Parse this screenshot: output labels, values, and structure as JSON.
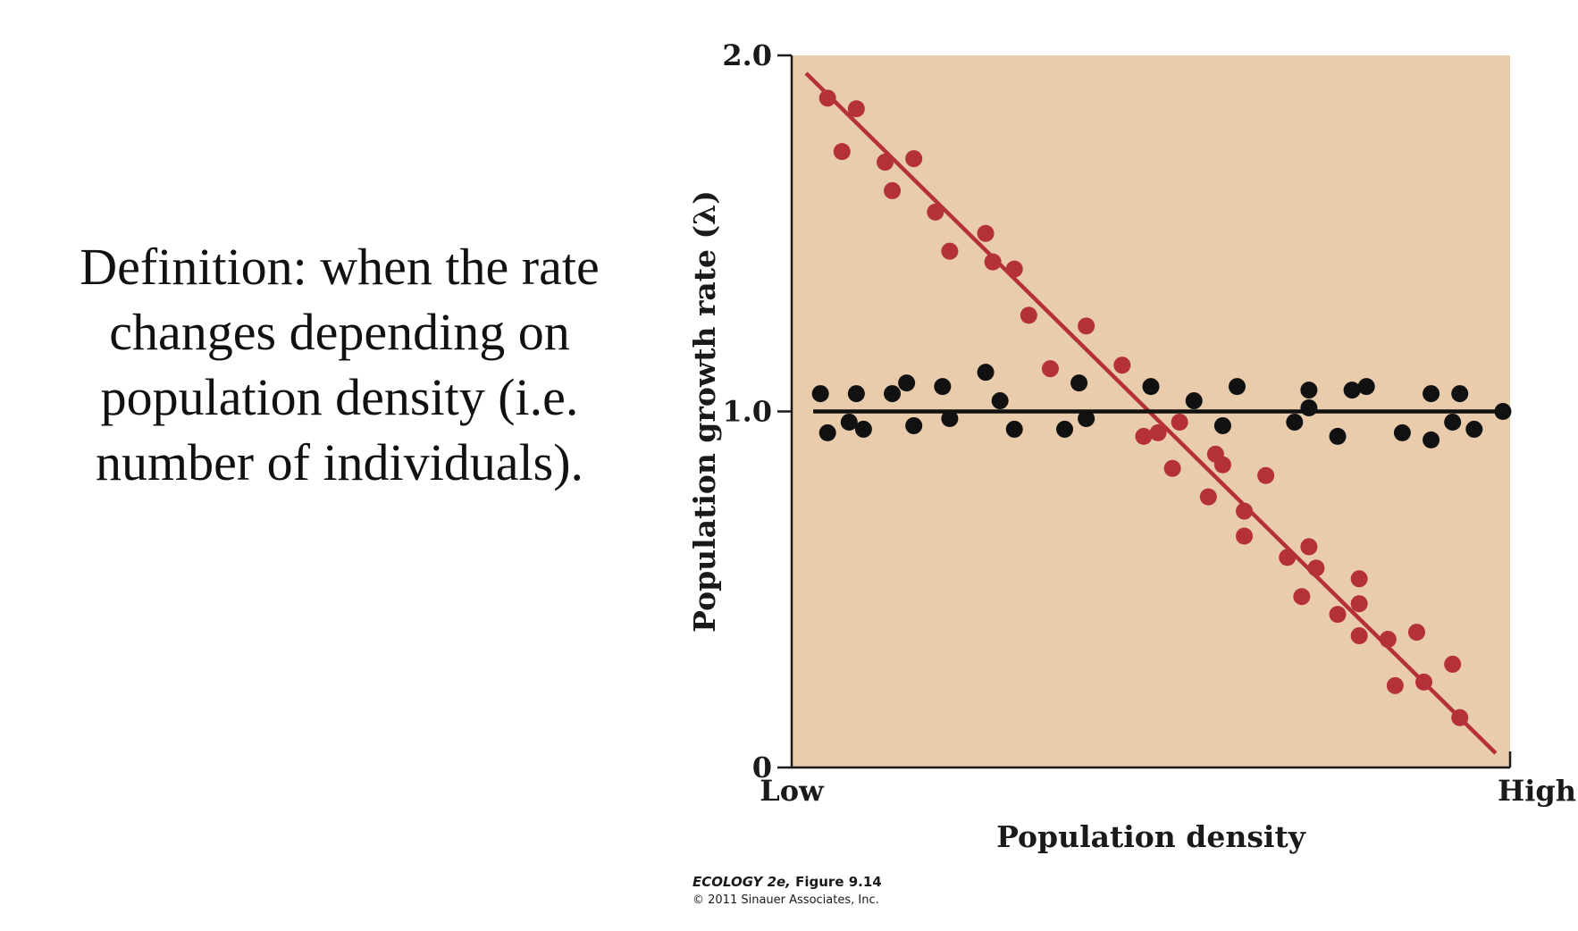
{
  "slide": {
    "definition_text": "Definition: when the rate changes depending on population density (i.e. number of individuals)."
  },
  "credit": {
    "title_italic": "ECOLOGY 2e,",
    "title_rest": " Figure 9.14",
    "copyright": "© 2011 Sinauer Associates, Inc."
  },
  "chart_data": {
    "type": "scatter",
    "xlabel": "Population density",
    "ylabel": "Population growth rate (λ)",
    "x_tick_labels": [
      "Low",
      "High"
    ],
    "y_ticks": [
      0,
      1.0,
      2.0
    ],
    "y_tick_labels": [
      "0",
      "1.0",
      "2.0"
    ],
    "xlim": [
      0,
      1
    ],
    "ylim": [
      0,
      2.0
    ],
    "background_color": "#e8ccab",
    "grid": false,
    "series": [
      {
        "color": "#b5313a",
        "trend_line": [
          [
            0.02,
            1.95
          ],
          [
            0.98,
            0.04
          ]
        ],
        "points": [
          [
            0.05,
            1.88
          ],
          [
            0.07,
            1.73
          ],
          [
            0.09,
            1.85
          ],
          [
            0.13,
            1.7
          ],
          [
            0.14,
            1.62
          ],
          [
            0.17,
            1.71
          ],
          [
            0.2,
            1.56
          ],
          [
            0.22,
            1.45
          ],
          [
            0.27,
            1.5
          ],
          [
            0.28,
            1.42
          ],
          [
            0.31,
            1.4
          ],
          [
            0.33,
            1.27
          ],
          [
            0.36,
            1.12
          ],
          [
            0.41,
            1.24
          ],
          [
            0.46,
            1.13
          ],
          [
            0.49,
            0.93
          ],
          [
            0.51,
            0.94
          ],
          [
            0.53,
            0.84
          ],
          [
            0.54,
            0.97
          ],
          [
            0.58,
            0.76
          ],
          [
            0.59,
            0.88
          ],
          [
            0.6,
            0.85
          ],
          [
            0.63,
            0.72
          ],
          [
            0.63,
            0.65
          ],
          [
            0.66,
            0.82
          ],
          [
            0.69,
            0.59
          ],
          [
            0.71,
            0.48
          ],
          [
            0.72,
            0.62
          ],
          [
            0.73,
            0.56
          ],
          [
            0.76,
            0.43
          ],
          [
            0.79,
            0.53
          ],
          [
            0.79,
            0.46
          ],
          [
            0.79,
            0.37
          ],
          [
            0.83,
            0.36
          ],
          [
            0.84,
            0.23
          ],
          [
            0.87,
            0.38
          ],
          [
            0.88,
            0.24
          ],
          [
            0.92,
            0.29
          ],
          [
            0.93,
            0.14
          ]
        ]
      },
      {
        "color": "#111111",
        "trend_line": [
          [
            0.03,
            1.0
          ],
          [
            0.99,
            1.0
          ]
        ],
        "points": [
          [
            0.04,
            1.05
          ],
          [
            0.05,
            0.94
          ],
          [
            0.08,
            0.97
          ],
          [
            0.09,
            1.05
          ],
          [
            0.1,
            0.95
          ],
          [
            0.14,
            1.05
          ],
          [
            0.16,
            1.08
          ],
          [
            0.17,
            0.96
          ],
          [
            0.21,
            1.07
          ],
          [
            0.22,
            0.98
          ],
          [
            0.27,
            1.11
          ],
          [
            0.29,
            1.03
          ],
          [
            0.31,
            0.95
          ],
          [
            0.38,
            0.95
          ],
          [
            0.4,
            1.08
          ],
          [
            0.41,
            0.98
          ],
          [
            0.5,
            1.07
          ],
          [
            0.56,
            1.03
          ],
          [
            0.6,
            0.96
          ],
          [
            0.62,
            1.07
          ],
          [
            0.7,
            0.97
          ],
          [
            0.72,
            1.06
          ],
          [
            0.72,
            1.01
          ],
          [
            0.76,
            0.93
          ],
          [
            0.78,
            1.06
          ],
          [
            0.8,
            1.07
          ],
          [
            0.85,
            0.94
          ],
          [
            0.89,
            1.05
          ],
          [
            0.89,
            0.92
          ],
          [
            0.92,
            0.97
          ],
          [
            0.93,
            1.05
          ],
          [
            0.95,
            0.95
          ],
          [
            0.99,
            1.0
          ]
        ]
      }
    ]
  },
  "colors": {
    "plot_background": "#e8ccab",
    "red_series": "#b5313a",
    "black_series": "#111111"
  }
}
